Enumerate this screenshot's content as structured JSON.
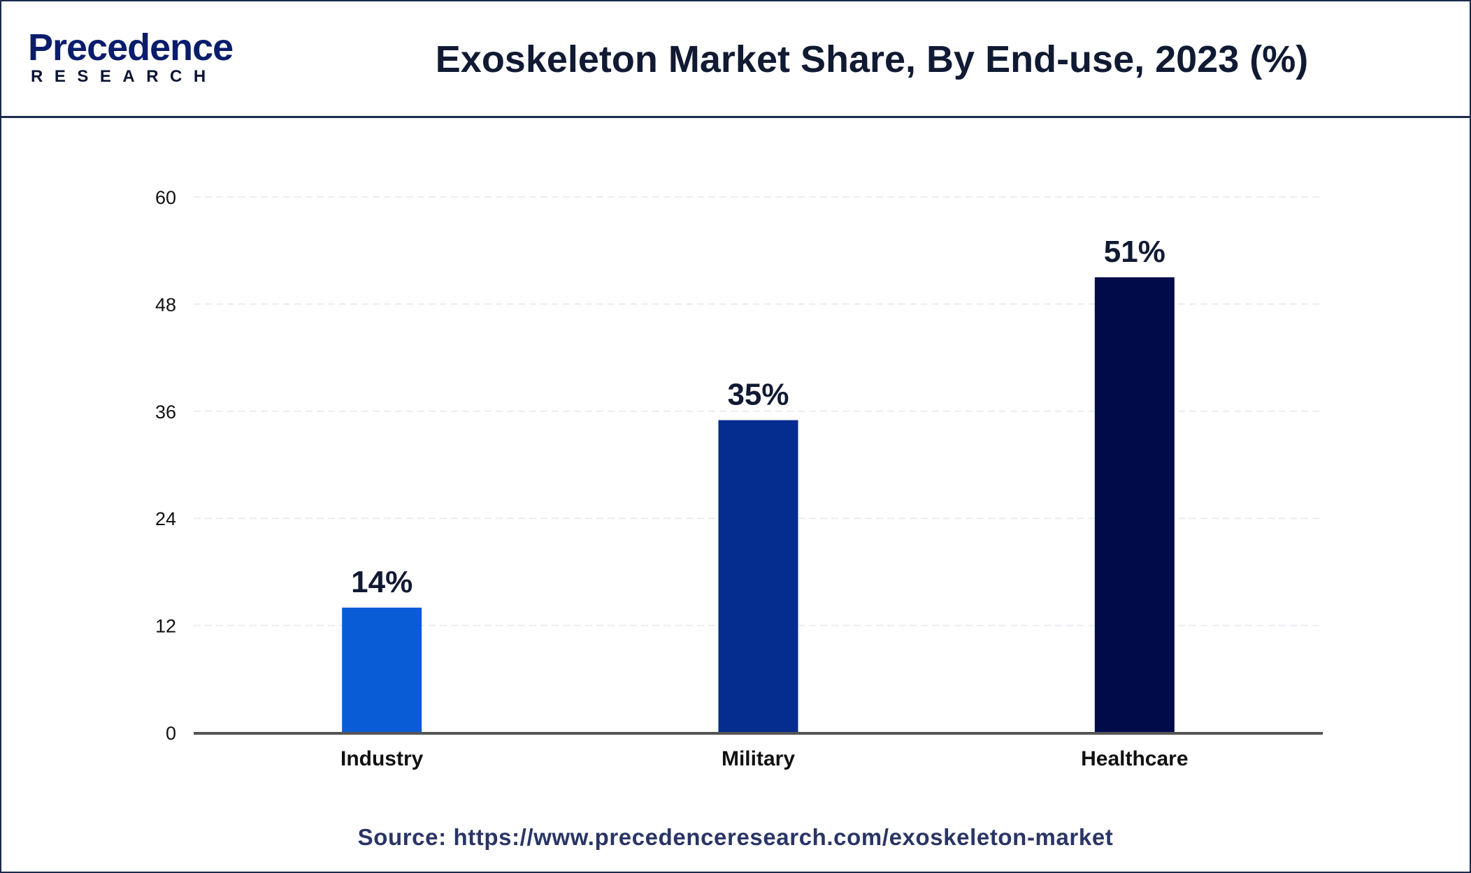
{
  "header": {
    "logo_main": "Precedence",
    "logo_sub": "RESEARCH",
    "title": "Exoskeleton Market Share, By End-use, 2023 (%)"
  },
  "chart_data": {
    "type": "bar",
    "title": "Exoskeleton Market Share, By End-use, 2023 (%)",
    "xlabel": "",
    "ylabel": "",
    "categories": [
      "Industry",
      "Military",
      "Healthcare"
    ],
    "values": [
      14,
      35,
      51
    ],
    "data_labels": [
      "14%",
      "35%",
      "51%"
    ],
    "bar_colors": [
      "#0a5bd6",
      "#052c8f",
      "#020b4a"
    ],
    "ylim": [
      0,
      60
    ],
    "yticks": [
      0,
      12,
      24,
      36,
      48,
      60
    ],
    "grid": true
  },
  "footer": {
    "source": "Source: https://www.precedenceresearch.com/exoskeleton-market"
  },
  "colors": {
    "border": "#1b2a4a",
    "grid": "#e9ecf1",
    "axis": "#555555",
    "label": "#111a33"
  }
}
